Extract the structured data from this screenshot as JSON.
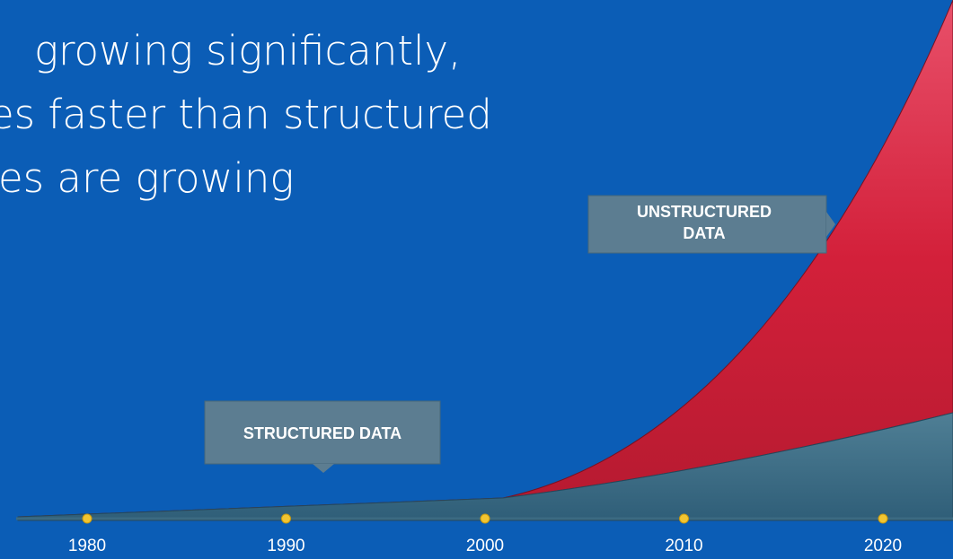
{
  "headline": {
    "lines": [
      "growing significantly,",
      "es faster than structured",
      "es are growing"
    ]
  },
  "labels": {
    "unstructured": [
      "UNSTRUCTURED",
      "DATA"
    ],
    "structured": "STRUCTURED DATA"
  },
  "timeline": {
    "years": [
      "1980",
      "1990",
      "2000",
      "2010",
      "2020"
    ]
  }
}
